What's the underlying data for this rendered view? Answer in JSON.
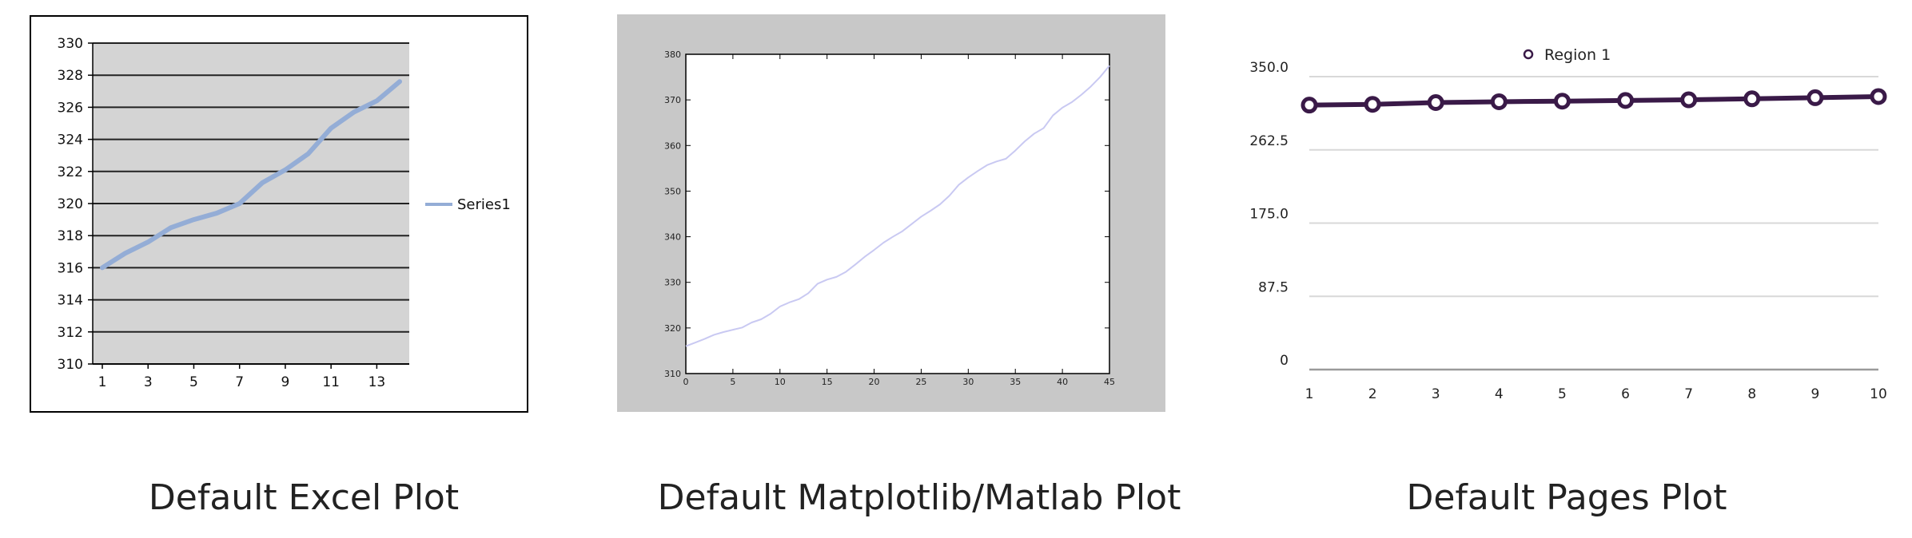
{
  "colors": {
    "excel_frame": "#000000",
    "excel_plot_bg": "#d4d4d4",
    "excel_line": "#94add6",
    "mpl_outer_bg": "#c8c8c8",
    "mpl_line": "#c9c9f2",
    "pages_line": "#3a1a48",
    "pages_grid": "#d8d8d8"
  },
  "captions": [
    "Default Excel Plot",
    "Default Matplotlib/Matlab Plot",
    "Default Pages Plot"
  ],
  "chart_data": [
    {
      "type": "line",
      "title": "",
      "xlabel": "",
      "ylabel": "",
      "grid": true,
      "legend": "right",
      "xlim": [
        1,
        14
      ],
      "ylim": [
        310,
        330
      ],
      "xticks": [
        "1",
        "3",
        "5",
        "7",
        "9",
        "11",
        "13"
      ],
      "yticks": [
        "310",
        "312",
        "314",
        "316",
        "318",
        "320",
        "322",
        "324",
        "326",
        "328",
        "330"
      ],
      "x": [
        1,
        2,
        3,
        4,
        5,
        6,
        7,
        8,
        9,
        10,
        11,
        12,
        13,
        14
      ],
      "series": [
        {
          "name": "Series1",
          "values": [
            316.0,
            316.9,
            317.6,
            318.5,
            319.0,
            319.4,
            320.0,
            321.3,
            322.1,
            323.1,
            324.7,
            325.7,
            326.4,
            327.6
          ]
        }
      ]
    },
    {
      "type": "line",
      "title": "",
      "xlabel": "",
      "ylabel": "",
      "grid": false,
      "legend": "none",
      "xlim": [
        0,
        45
      ],
      "ylim": [
        310,
        380
      ],
      "xticks": [
        "0",
        "5",
        "10",
        "15",
        "20",
        "25",
        "30",
        "35",
        "40",
        "45"
      ],
      "yticks": [
        "310",
        "320",
        "330",
        "340",
        "350",
        "360",
        "370",
        "380"
      ],
      "x": [
        0,
        1,
        2,
        3,
        4,
        5,
        6,
        7,
        8,
        9,
        10,
        11,
        12,
        13,
        14,
        15,
        16,
        17,
        18,
        19,
        20,
        21,
        22,
        23,
        24,
        25,
        26,
        27,
        28,
        29,
        30,
        31,
        32,
        33,
        34,
        35,
        36,
        37,
        38,
        39,
        40,
        41,
        42,
        43,
        44,
        45
      ],
      "series": [
        {
          "name": "",
          "values": [
            316.0,
            316.8,
            317.6,
            318.5,
            319.1,
            319.6,
            320.1,
            321.2,
            321.9,
            323.1,
            324.7,
            325.6,
            326.3,
            327.6,
            329.7,
            330.6,
            331.2,
            332.3,
            333.9,
            335.6,
            337.1,
            338.7,
            340.0,
            341.2,
            342.8,
            344.4,
            345.7,
            347.1,
            349.0,
            351.4,
            353.0,
            354.4,
            355.7,
            356.5,
            357.1,
            358.9,
            360.9,
            362.6,
            363.8,
            366.6,
            368.3,
            369.5,
            371.1,
            372.9,
            375.0,
            377.5
          ]
        }
      ]
    },
    {
      "type": "line",
      "title": "",
      "xlabel": "",
      "ylabel": "",
      "grid": true,
      "legend": "top",
      "xlim": [
        1,
        10
      ],
      "ylim": [
        0,
        350
      ],
      "xticks": [
        "1",
        "2",
        "3",
        "4",
        "5",
        "6",
        "7",
        "8",
        "9",
        "10"
      ],
      "yticks": [
        "0",
        "87.5",
        "175.0",
        "262.5",
        "350.0"
      ],
      "x": [
        1,
        2,
        3,
        4,
        5,
        6,
        7,
        8,
        9,
        10
      ],
      "series": [
        {
          "name": "Region 1",
          "values": [
            316.0,
            316.9,
            319.0,
            320.0,
            320.7,
            321.5,
            322.3,
            323.5,
            324.8,
            326.2
          ]
        }
      ]
    }
  ]
}
